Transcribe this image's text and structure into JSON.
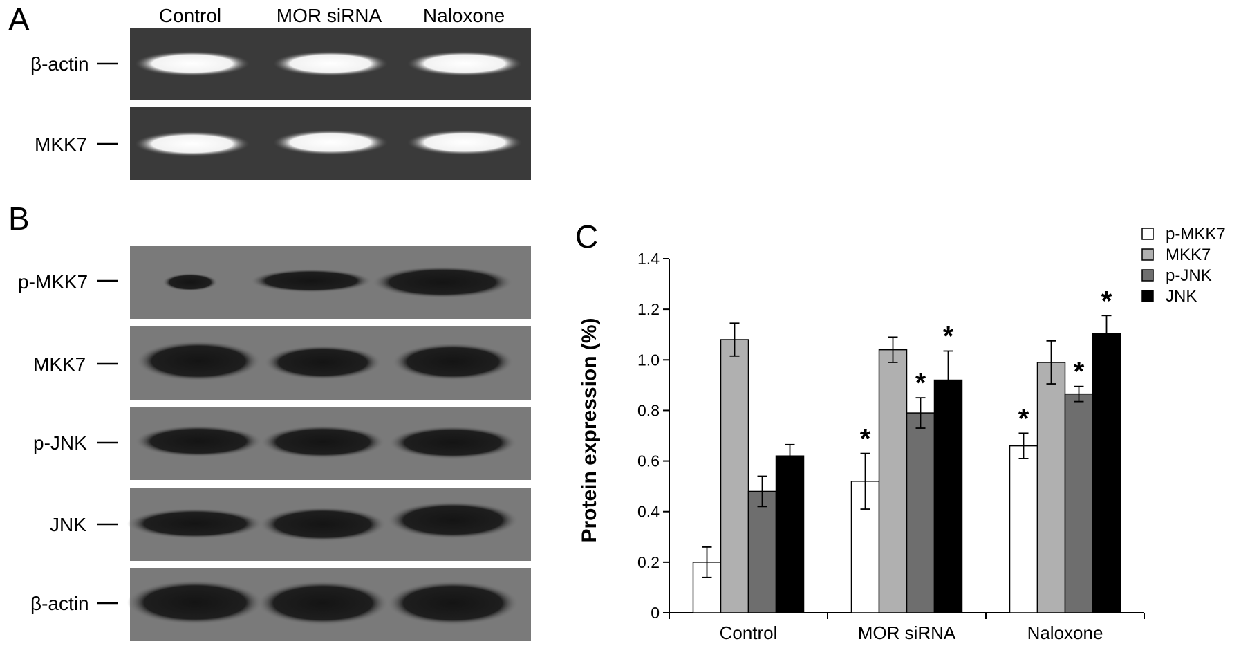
{
  "panels": {
    "a": {
      "letter": "A",
      "lanes": [
        "Control",
        "MOR siRNA",
        "Naloxone"
      ],
      "rows": [
        "β-actin",
        "MKK7"
      ]
    },
    "b": {
      "letter": "B",
      "rows": [
        "p-MKK7",
        "MKK7",
        "p-JNK",
        "JNK",
        "β-actin"
      ]
    },
    "c": {
      "letter": "C"
    }
  },
  "colors": {
    "p-MKK7": "#ffffff",
    "MKK7": "#b0b0b0",
    "p-JNK": "#6e6e6e",
    "JNK": "#000000",
    "gel_background": "#3a3a3a",
    "blot_background": "#7a7a7a"
  },
  "chart_data": {
    "type": "bar",
    "title": "",
    "xlabel": "",
    "ylabel": "Protein expression (%)",
    "ylim": [
      0,
      1.4
    ],
    "yticks": [
      "0",
      "0.2",
      "0.4",
      "0.6",
      "0.8",
      "1.0",
      "1.2",
      "1.4"
    ],
    "categories": [
      "Control",
      "MOR siRNA",
      "Naloxone"
    ],
    "legend_position": "top-right",
    "significance_marker": "*",
    "series": [
      {
        "name": "p-MKK7",
        "values": [
          0.2,
          0.52,
          0.66
        ],
        "errors": [
          0.06,
          0.11,
          0.05
        ],
        "significant": [
          false,
          true,
          true
        ]
      },
      {
        "name": "MKK7",
        "values": [
          1.08,
          1.04,
          0.99
        ],
        "errors": [
          0.065,
          0.05,
          0.085
        ],
        "significant": [
          false,
          false,
          false
        ]
      },
      {
        "name": "p-JNK",
        "values": [
          0.48,
          0.79,
          0.865
        ],
        "errors": [
          0.06,
          0.06,
          0.03
        ],
        "significant": [
          false,
          true,
          true
        ]
      },
      {
        "name": "JNK",
        "values": [
          0.62,
          0.92,
          1.105
        ],
        "errors": [
          0.045,
          0.115,
          0.07
        ],
        "significant": [
          false,
          true,
          true
        ]
      }
    ]
  }
}
